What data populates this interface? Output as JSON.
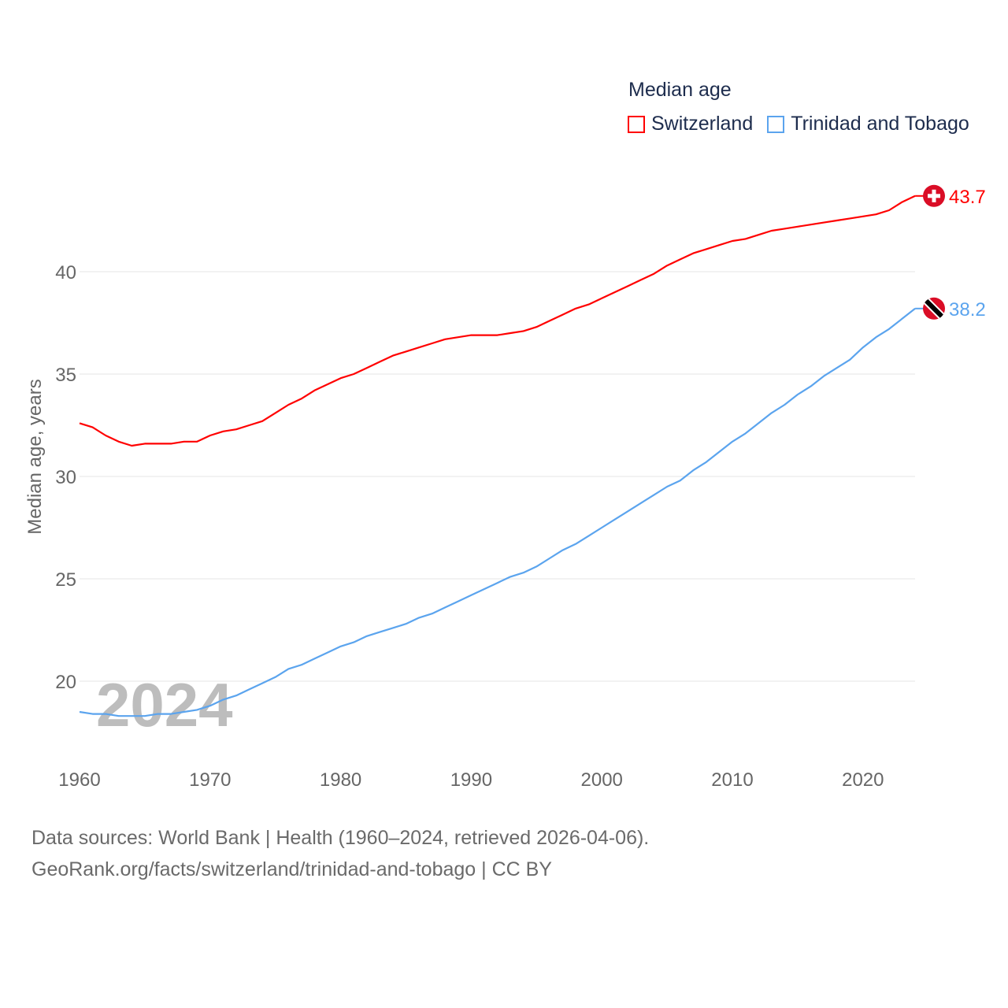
{
  "chart_data": {
    "type": "line",
    "title": "Median age",
    "xlabel": "",
    "ylabel": "Median age, years",
    "xlim": [
      1960,
      2024
    ],
    "ylim": [
      17,
      45
    ],
    "x_ticks": [
      1960,
      1970,
      1980,
      1990,
      2000,
      2010,
      2020
    ],
    "y_ticks": [
      20,
      25,
      30,
      35,
      40
    ],
    "grid": "horizontal",
    "legend_position": "top-right",
    "year_watermark": "2024",
    "x": [
      1960,
      1961,
      1962,
      1963,
      1964,
      1965,
      1966,
      1967,
      1968,
      1969,
      1970,
      1971,
      1972,
      1973,
      1974,
      1975,
      1976,
      1977,
      1978,
      1979,
      1980,
      1981,
      1982,
      1983,
      1984,
      1985,
      1986,
      1987,
      1988,
      1989,
      1990,
      1991,
      1992,
      1993,
      1994,
      1995,
      1996,
      1997,
      1998,
      1999,
      2000,
      2001,
      2002,
      2003,
      2004,
      2005,
      2006,
      2007,
      2008,
      2009,
      2010,
      2011,
      2012,
      2013,
      2014,
      2015,
      2016,
      2017,
      2018,
      2019,
      2020,
      2021,
      2022,
      2023,
      2024
    ],
    "series": [
      {
        "name": "Switzerland",
        "color": "#ff0000",
        "end_label": "43.7",
        "flag": "switzerland-flag",
        "values": [
          32.6,
          32.4,
          32.0,
          31.7,
          31.5,
          31.6,
          31.6,
          31.6,
          31.7,
          31.7,
          32.0,
          32.2,
          32.3,
          32.5,
          32.7,
          33.1,
          33.5,
          33.8,
          34.2,
          34.5,
          34.8,
          35.0,
          35.3,
          35.6,
          35.9,
          36.1,
          36.3,
          36.5,
          36.7,
          36.8,
          36.9,
          36.9,
          36.9,
          37.0,
          37.1,
          37.3,
          37.6,
          37.9,
          38.2,
          38.4,
          38.7,
          39.0,
          39.3,
          39.6,
          39.9,
          40.3,
          40.6,
          40.9,
          41.1,
          41.3,
          41.5,
          41.6,
          41.8,
          42.0,
          42.1,
          42.2,
          42.3,
          42.4,
          42.5,
          42.6,
          42.7,
          42.8,
          43.0,
          43.4,
          43.7
        ]
      },
      {
        "name": "Trinidad and Tobago",
        "color": "#5ba4ee",
        "end_label": "38.2",
        "flag": "trinidad-and-tobago-flag",
        "values": [
          18.5,
          18.4,
          18.4,
          18.3,
          18.3,
          18.3,
          18.4,
          18.4,
          18.5,
          18.6,
          18.8,
          19.1,
          19.3,
          19.6,
          19.9,
          20.2,
          20.6,
          20.8,
          21.1,
          21.4,
          21.7,
          21.9,
          22.2,
          22.4,
          22.6,
          22.8,
          23.1,
          23.3,
          23.6,
          23.9,
          24.2,
          24.5,
          24.8,
          25.1,
          25.3,
          25.6,
          26.0,
          26.4,
          26.7,
          27.1,
          27.5,
          27.9,
          28.3,
          28.7,
          29.1,
          29.5,
          29.8,
          30.3,
          30.7,
          31.2,
          31.7,
          32.1,
          32.6,
          33.1,
          33.5,
          34.0,
          34.4,
          34.9,
          35.3,
          35.7,
          36.3,
          36.8,
          37.2,
          37.7,
          38.2
        ]
      }
    ]
  },
  "footer": {
    "line1": "Data sources: World Bank | Health (1960–2024, retrieved 2026-04-06).",
    "line2": "GeoRank.org/facts/switzerland/trinidad-and-tobago | CC BY"
  }
}
